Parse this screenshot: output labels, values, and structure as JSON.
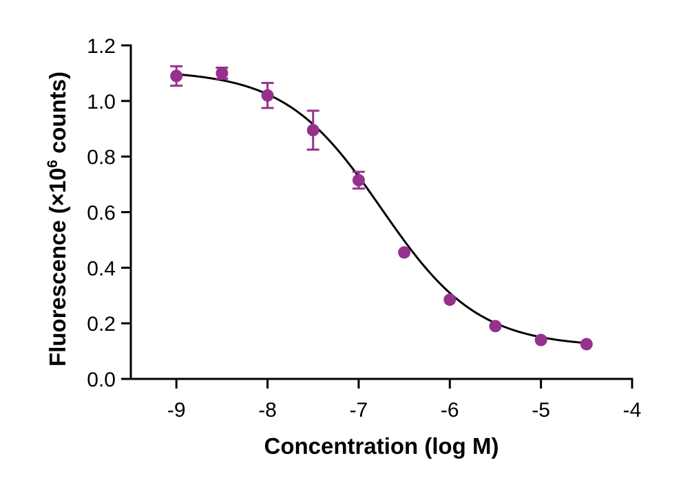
{
  "chart_data": {
    "type": "scatter",
    "xlabel": "Concentration (log M)",
    "ylabel_main": "Fluorescence (×10",
    "ylabel_sup": "6",
    "ylabel_tail": " counts)",
    "xlim": [
      -9.5,
      -4
    ],
    "ylim": [
      0,
      1.2
    ],
    "x_ticks": [
      -9,
      -8,
      -7,
      -6,
      -5,
      -4
    ],
    "x_tick_labels": [
      "-9",
      "-8",
      "-7",
      "-6",
      "-5",
      "-4"
    ],
    "y_ticks": [
      0,
      0.2,
      0.4,
      0.6,
      0.8,
      1.0,
      1.2
    ],
    "y_tick_labels": [
      "0.0",
      "0.2",
      "0.4",
      "0.6",
      "0.8",
      "1.0",
      "1.2"
    ],
    "grid": false,
    "point_color": "#95318d",
    "curve_color": "#000000",
    "series": [
      {
        "x": [
          -9,
          -8.5,
          -8,
          -7.5,
          -7,
          -6.5,
          -6,
          -5.5,
          -5,
          -4.5
        ],
        "y": [
          1.09,
          1.1,
          1.02,
          0.895,
          0.715,
          0.455,
          0.285,
          0.19,
          0.14,
          0.125
        ],
        "error": [
          0.035,
          0.02,
          0.045,
          0.07,
          0.03,
          0,
          0,
          0,
          0,
          0
        ]
      }
    ],
    "fit": {
      "model": "four-parameter logistic",
      "top": 1.11,
      "bottom": 0.115,
      "log_ic50": -6.75,
      "hill_slope": -0.82
    }
  }
}
